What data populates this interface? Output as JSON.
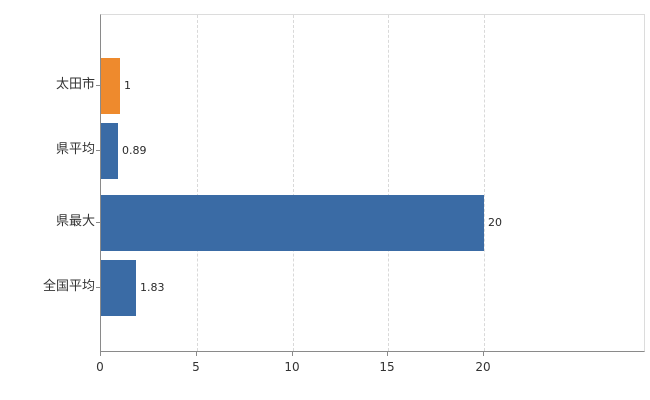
{
  "colors": {
    "bar_blue": "#3A6BA5",
    "bar_orange": "#EE8A2D",
    "axis": "#8a8a8a",
    "gridline": "#d9d9d9",
    "text": "#333333"
  },
  "chart_data": {
    "type": "bar",
    "orientation": "horizontal",
    "title": "",
    "xlabel": "",
    "ylabel": "",
    "categories": [
      "太田市",
      "県平均",
      "県最大",
      "全国平均"
    ],
    "values": [
      1,
      0.89,
      20,
      1.83
    ],
    "value_labels": [
      "1",
      "0.89",
      "20",
      "1.83"
    ],
    "bar_colors": [
      "#EE8A2D",
      "#3A6BA5",
      "#3A6BA5",
      "#3A6BA5"
    ],
    "xticks": [
      0,
      5,
      10,
      15,
      20
    ],
    "xlim": [
      0,
      28.5
    ],
    "grid": "vertical-dashed",
    "legend": "none"
  }
}
